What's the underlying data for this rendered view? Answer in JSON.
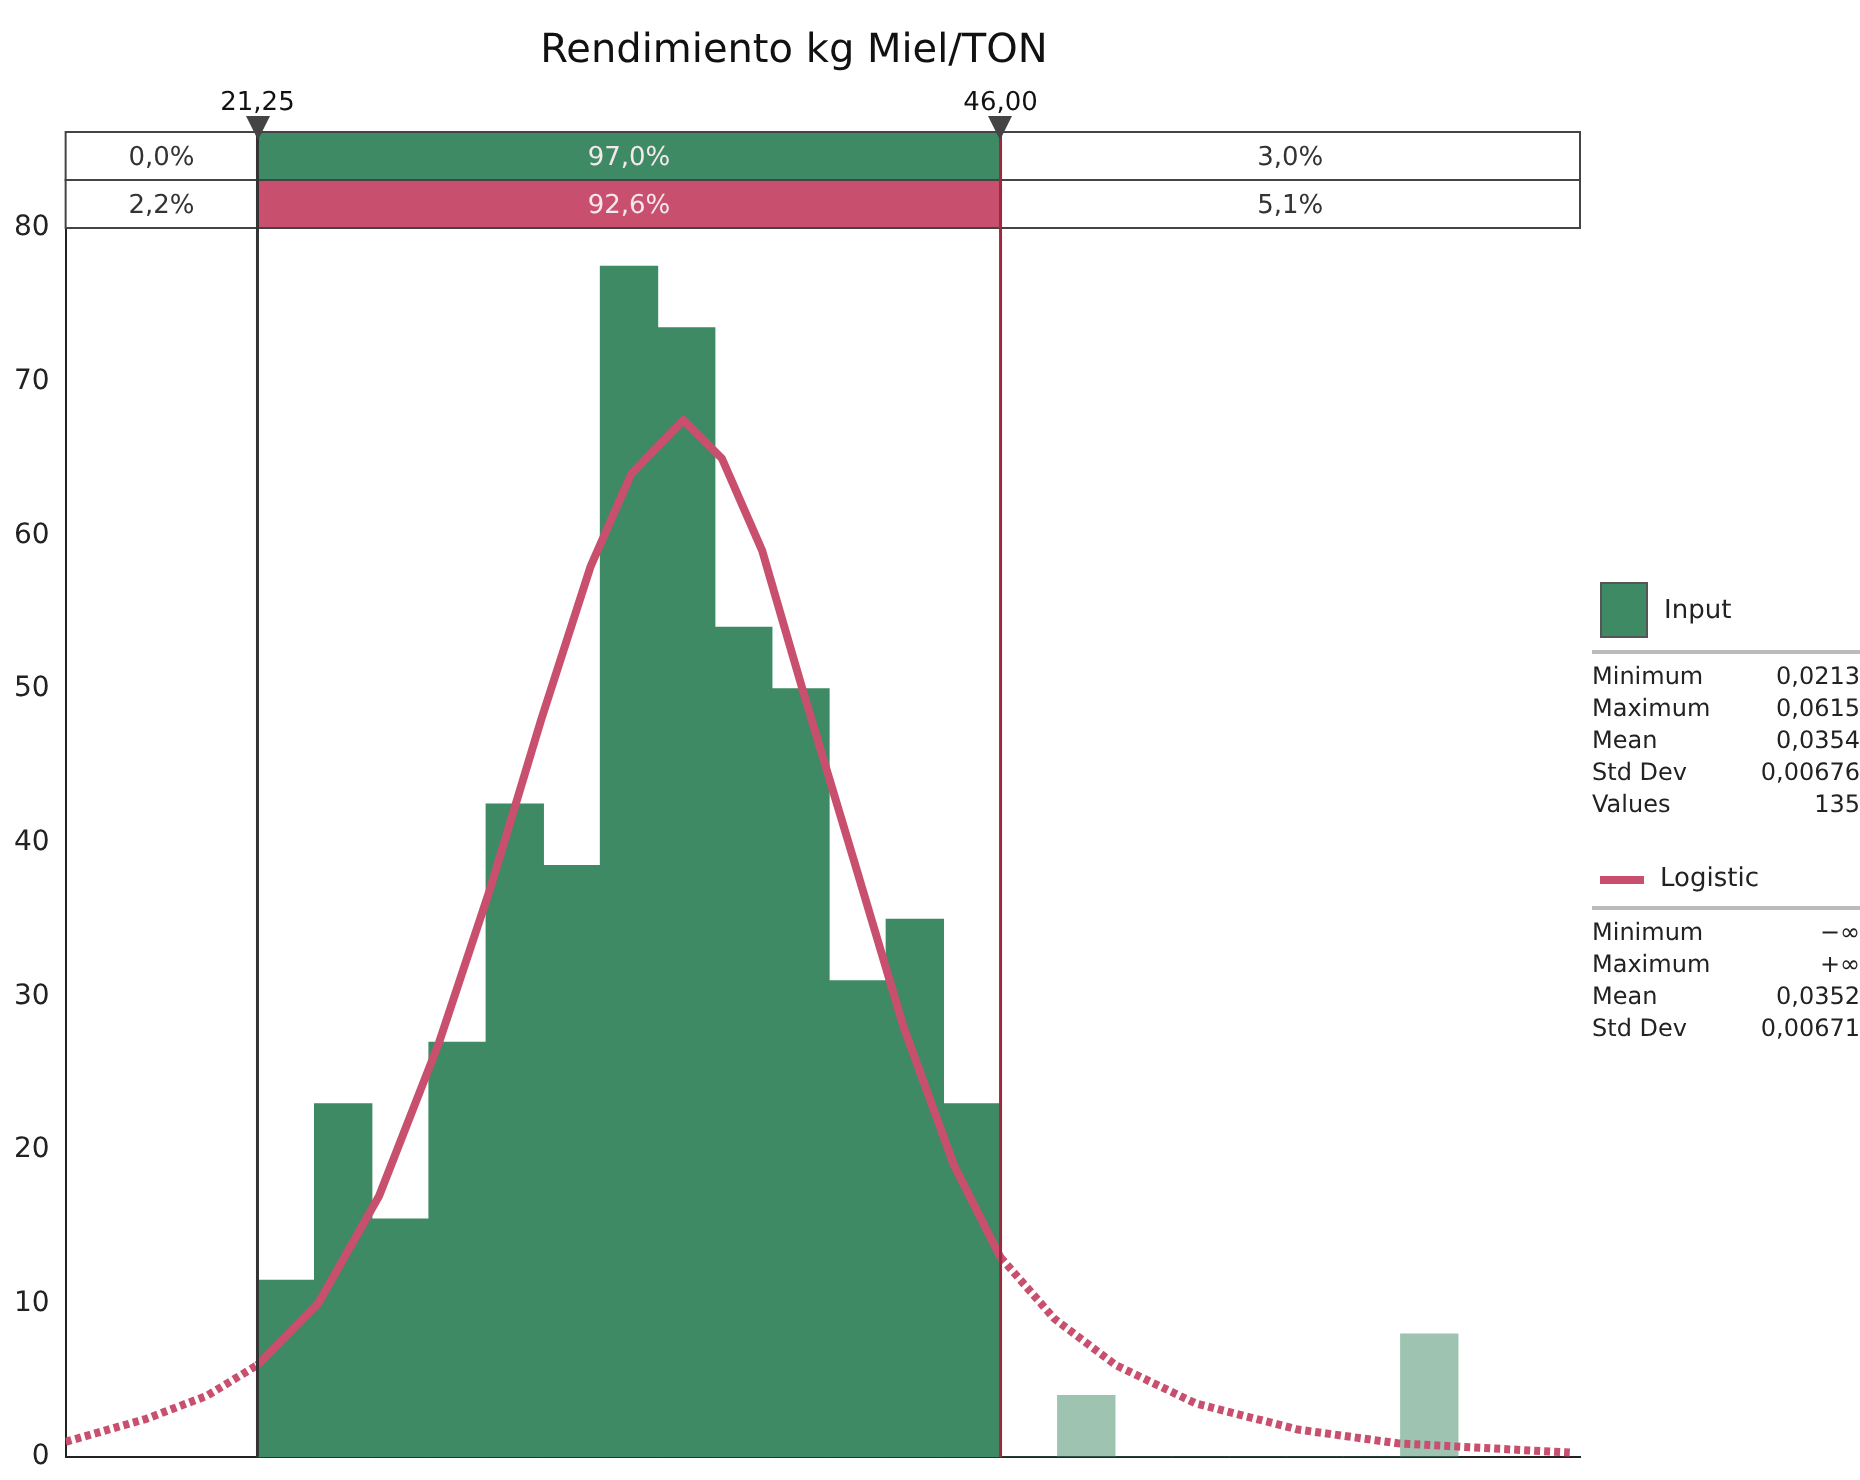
{
  "chart_data": {
    "type": "histogram",
    "title": "Rendimiento kg Miel/TON",
    "bins": [
      21.25,
      23.15,
      25.06,
      26.96,
      28.87,
      30.77,
      32.67,
      34.58,
      36.48,
      38.38,
      40.29,
      42.19,
      44.1,
      46.0,
      47.9,
      49.81,
      51.71,
      53.62,
      55.52,
      57.42,
      59.33,
      61.23
    ],
    "series": [
      {
        "name": "Input",
        "color": "#3d8a64",
        "values": [
          11.5,
          23,
          15.5,
          27,
          42.5,
          38.5,
          77.5,
          73.5,
          54,
          50,
          31,
          35,
          23,
          0,
          4,
          0,
          0,
          0,
          0,
          0,
          8
        ]
      },
      {
        "name": "Logistic",
        "type": "line",
        "color": "#c8506e",
        "x": [
          14.86,
          17.55,
          19.57,
          21.25,
          23.27,
          25.3,
          27.3,
          29.0,
          30.7,
          32.35,
          33.7,
          35.44,
          36.72,
          38.06,
          39.4,
          41.09,
          42.77,
          44.45,
          46.0,
          47.8,
          49.83,
          52.5,
          55.9,
          59.25,
          64.96
        ],
        "values": [
          1,
          2.5,
          4,
          6,
          10,
          17,
          27,
          37,
          48,
          58,
          64,
          67.5,
          65,
          59,
          50,
          39,
          28,
          19,
          13,
          9,
          6,
          3.5,
          1.8,
          0.9,
          0.3
        ]
      }
    ],
    "xlim": [
      14.86,
      65.3
    ],
    "ylim": [
      0,
      80
    ],
    "yticks": [
      0,
      10,
      20,
      30,
      40,
      50,
      60,
      70,
      80
    ],
    "tick_labels": "y",
    "legend": "right",
    "ref_lines": [
      {
        "axis": "x",
        "value": 21.25,
        "label": "21,25",
        "color": "#333333"
      },
      {
        "axis": "x",
        "value": 46.0,
        "label": "46,00",
        "color": "#a0283c"
      }
    ],
    "annotations": [
      "0,0%",
      "97,0%",
      "3,0%",
      "2,2%",
      "92,6%",
      "5,1%",
      "Minimum 0,0213",
      "Maximum 0,0615",
      "Mean 0,0354",
      "Std Dev 0,00676",
      "Values 135",
      "Minimum −∞",
      "Maximum +∞",
      "Mean 0,0352",
      "Std Dev 0,00671"
    ]
  }
}
